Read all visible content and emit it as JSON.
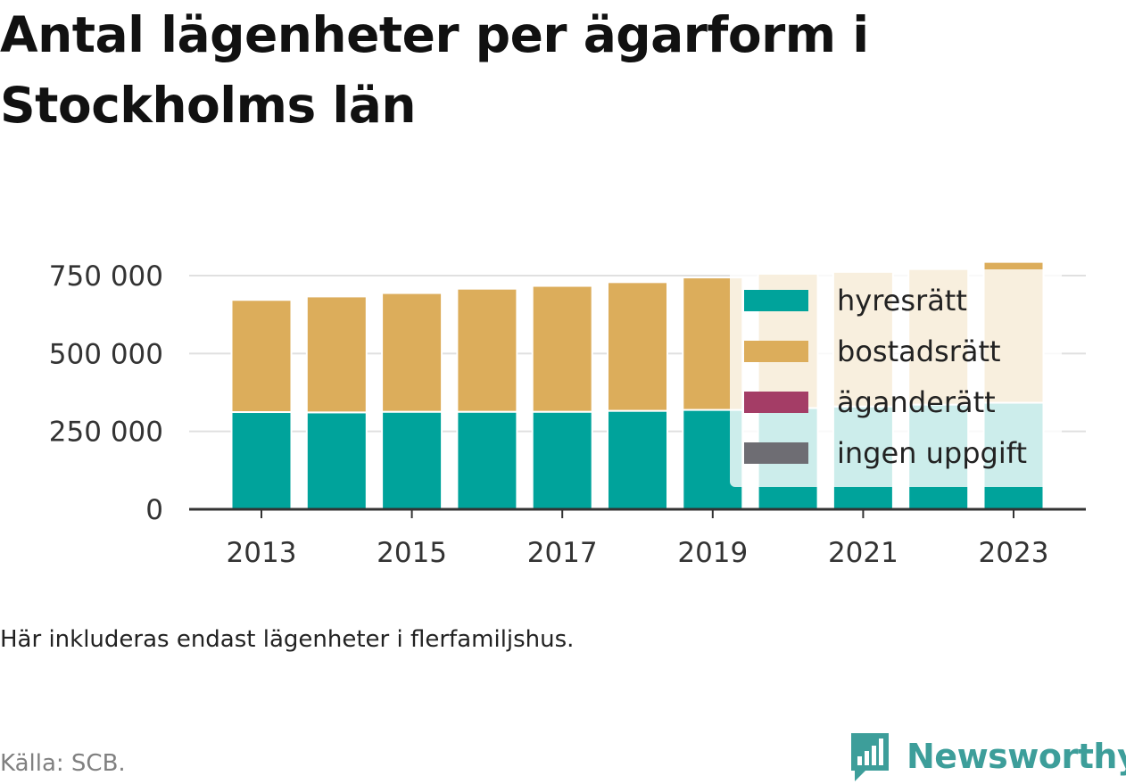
{
  "title": "Antal lägenheter per ägarform i Stockholms län",
  "note": "Här inkluderas endast lägenheter i flerfamiljshus.",
  "source": "Källa: SCB.",
  "logo_text": "Newsworthy",
  "colors": {
    "hyresratt": "#00a39b",
    "bostadsratt": "#dcad5b",
    "aganderatt": "#a43d66",
    "ingen_uppgift": "#6e6d73",
    "grid": "#e0e0e0",
    "axis": "#333333",
    "brand": "#3d9e9a"
  },
  "chart_data": {
    "type": "bar",
    "stacked": true,
    "categories": [
      "2013",
      "2014",
      "2015",
      "2016",
      "2017",
      "2018",
      "2019",
      "2020",
      "2021",
      "2022",
      "2023"
    ],
    "x_tick_labels": [
      "2013",
      "2015",
      "2017",
      "2019",
      "2021",
      "2023"
    ],
    "y_ticks": [
      0,
      250000,
      500000,
      750000
    ],
    "y_tick_labels": [
      "0",
      "250 000",
      "500 000",
      "750 000"
    ],
    "ylim": [
      0,
      760000
    ],
    "grid": true,
    "legend_position": "top-right",
    "series": [
      {
        "name": "hyresrätt",
        "color_key": "hyresratt",
        "values": [
          312000,
          311000,
          313000,
          313000,
          313000,
          316000,
          319000,
          325000,
          330000,
          336000,
          342000
        ]
      },
      {
        "name": "bostadsrätt",
        "color_key": "bostadsratt",
        "values": [
          360000,
          372000,
          381000,
          395000,
          404000,
          413000,
          425000,
          431000,
          432000,
          435000,
          452000
        ]
      },
      {
        "name": "äganderätt",
        "color_key": "aganderatt",
        "values": [
          0,
          0,
          0,
          0,
          0,
          0,
          0,
          0,
          0,
          0,
          0
        ]
      },
      {
        "name": "ingen uppgift",
        "color_key": "ingen_uppgift",
        "values": [
          0,
          0,
          0,
          0,
          0,
          0,
          0,
          0,
          0,
          0,
          0
        ]
      }
    ]
  }
}
